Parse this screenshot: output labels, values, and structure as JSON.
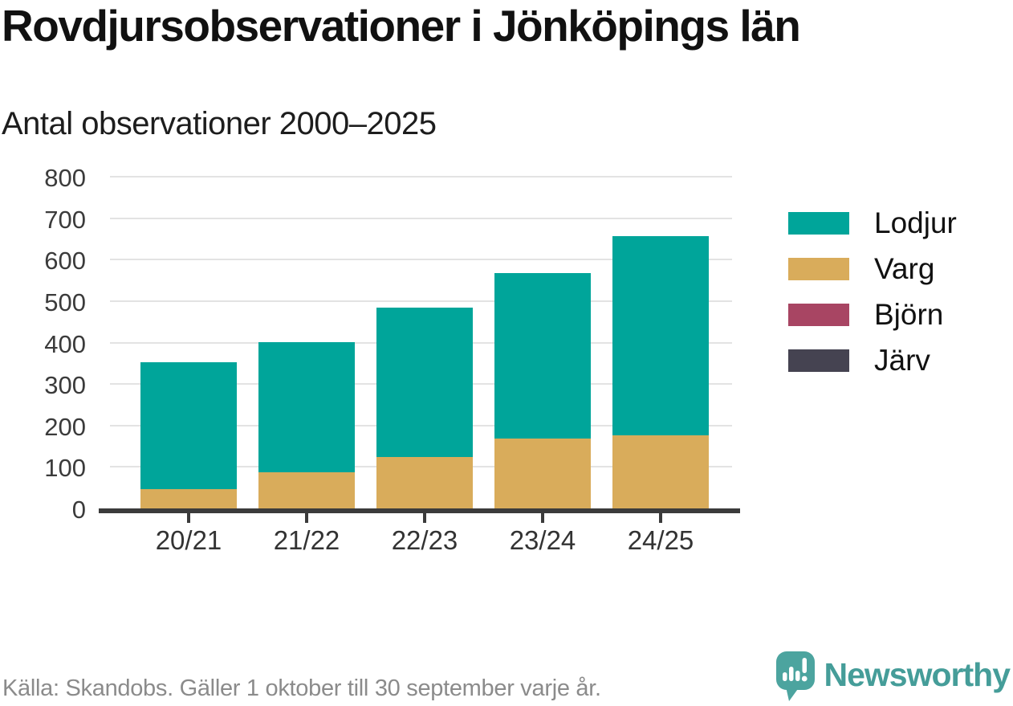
{
  "title": "Rovdjursobservationer i Jönköpings län",
  "subtitle": "Antal observationer 2000–2025",
  "footer": {
    "source_text": "Källa: Skandobs. Gäller 1 oktober till 30 september varje år.",
    "brand_name": "Newsworthy"
  },
  "colors": {
    "lodjur": "#00a59a",
    "varg": "#d9ac5b",
    "bjorn": "#a84563",
    "jarv": "#454351",
    "axis": "#3b3b3b",
    "grid": "#e3e3e3",
    "brand_teal": "#4ca49f",
    "brand_text": "#459d99",
    "footer_text": "#8b8b8b"
  },
  "icons": {
    "brand_logo": "bar-chart-speech-bubble-icon"
  },
  "chart_data": {
    "type": "bar",
    "stacked": true,
    "title": "Rovdjursobservationer i Jönköpings län",
    "subtitle": "Antal observationer 2000–2025",
    "categories": [
      "20/21",
      "21/22",
      "22/23",
      "23/24",
      "24/25"
    ],
    "series": [
      {
        "name": "Lodjur",
        "color": "#00a59a",
        "values": [
          306,
          314,
          361,
          399,
          481
        ]
      },
      {
        "name": "Varg",
        "color": "#d9ac5b",
        "values": [
          47,
          87,
          124,
          169,
          176
        ]
      },
      {
        "name": "Björn",
        "color": "#a84563",
        "values": [
          0,
          0,
          0,
          0,
          0
        ]
      },
      {
        "name": "Järv",
        "color": "#454351",
        "values": [
          0,
          0,
          0,
          0,
          0
        ]
      }
    ],
    "totals": [
      353,
      401,
      485,
      568,
      657
    ],
    "xlabel": "",
    "ylabel": "",
    "ylim": [
      0,
      800
    ],
    "yticks": [
      0,
      100,
      200,
      300,
      400,
      500,
      600,
      700,
      800
    ],
    "grid": true,
    "legend_position": "right"
  }
}
